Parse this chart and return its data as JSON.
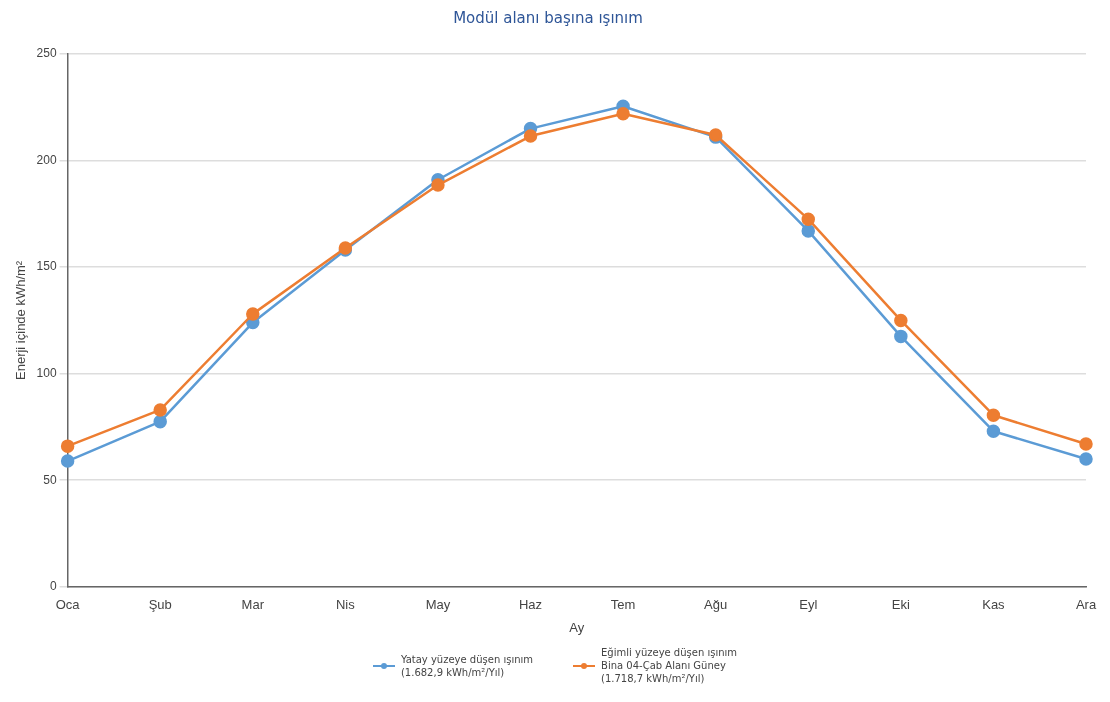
{
  "chart_data": {
    "type": "line",
    "title": "Modül alanı başına ışınım",
    "xlabel": "Ay",
    "ylabel": "Enerji içinde kWh/m²",
    "categories": [
      "Oca",
      "Şub",
      "Mar",
      "Nis",
      "May",
      "Haz",
      "Tem",
      "Ağu",
      "Eyl",
      "Eki",
      "Kas",
      "Ara"
    ],
    "series": [
      {
        "name": "Yatay yüzeye düşen ışınım\n(1.682,9 kWh/m²/Yıl)",
        "color": "#5b9bd5",
        "values": [
          59,
          77.5,
          124,
          158,
          191,
          215,
          225.5,
          211,
          167,
          117.5,
          73,
          60
        ]
      },
      {
        "name": "Eğimli yüzeye düşen ışınım\nBina 04-Çab Alanı Güney\n(1.718,7 kWh/m²/Yıl)",
        "color": "#ed7d31",
        "values": [
          66,
          83,
          128,
          159,
          188.5,
          211.5,
          222,
          212,
          172.5,
          125,
          80.5,
          67
        ]
      }
    ],
    "ylim": [
      0,
      250
    ],
    "yticks": [
      0,
      50,
      100,
      150,
      200,
      250
    ],
    "grid": "y",
    "legend": "bottom",
    "marker": "circle",
    "line_style": "solid"
  }
}
